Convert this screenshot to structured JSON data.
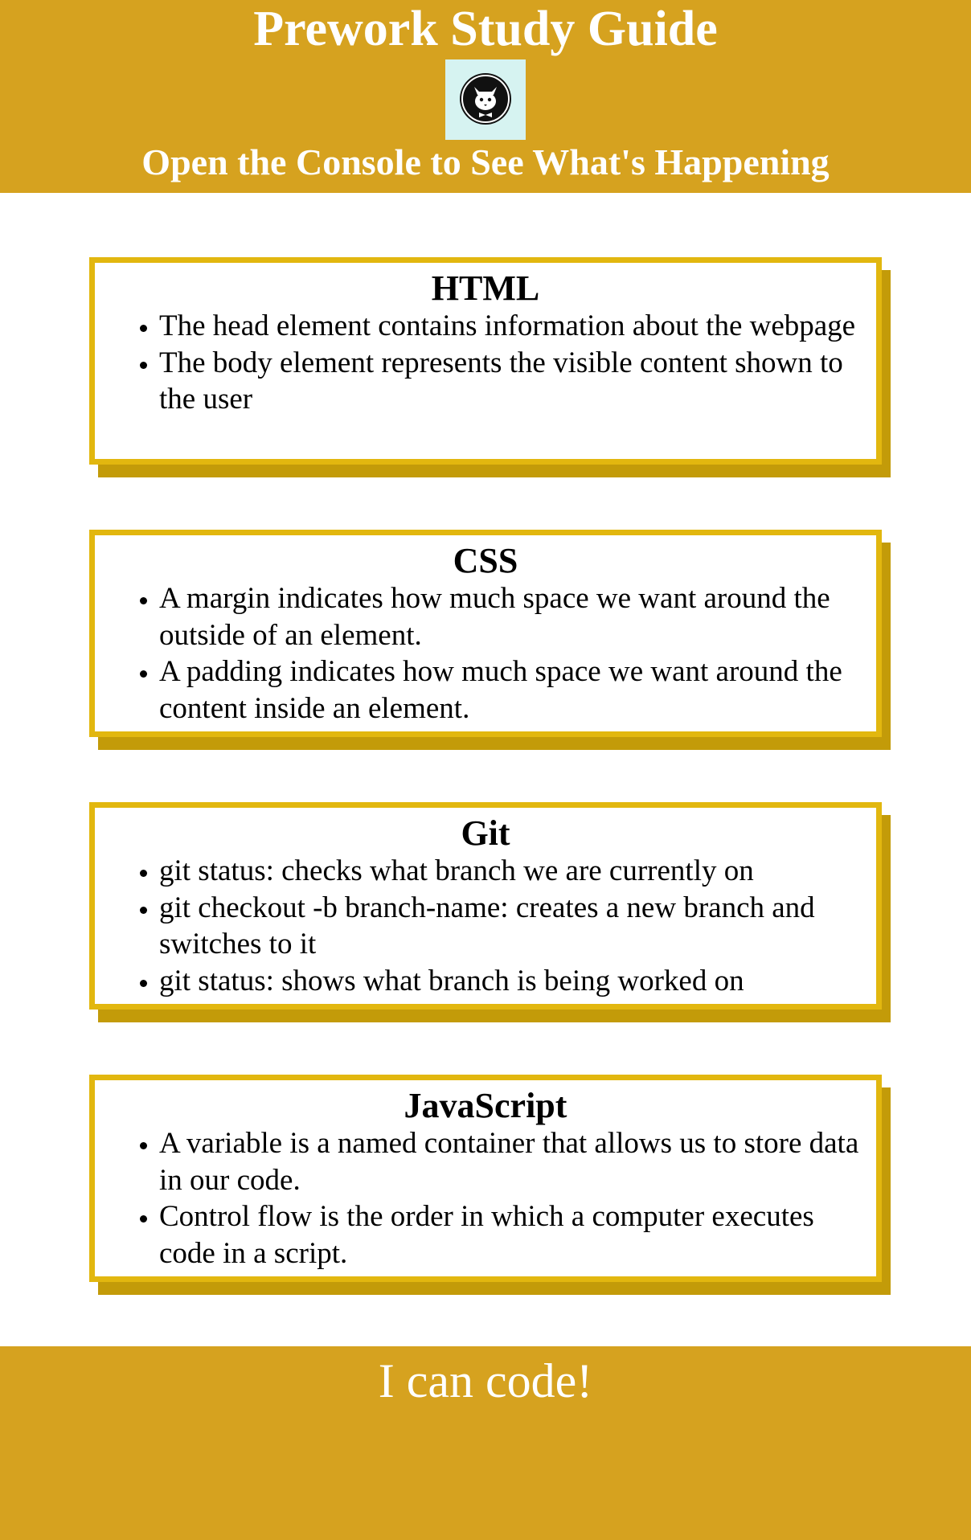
{
  "header": {
    "title": "Prework Study Guide",
    "subtitle": "Open the Console to See What's Happening",
    "logo_icon": "cat-icon"
  },
  "colors": {
    "header_bg": "#d6a21f",
    "card_border": "#e2b70f",
    "card_shadow": "#c39b09",
    "logo_bg": "#d6f3f1"
  },
  "cards": [
    {
      "title": "HTML",
      "items": [
        "The head element contains information about the webpage",
        "The body element represents the visible content shown to the user"
      ]
    },
    {
      "title": "CSS",
      "items": [
        "A margin indicates how much space we want around the outside of an element.",
        "A padding indicates how much space we want around the content inside an element."
      ]
    },
    {
      "title": "Git",
      "items": [
        "git status: checks what branch we are currently on",
        "git checkout -b branch-name: creates a new branch and switches to it",
        "git status: shows what branch is being worked on"
      ]
    },
    {
      "title": "JavaScript",
      "items": [
        "A variable is a named container that allows us to store data in our code.",
        "Control flow is the order in which a computer executes code in a script."
      ]
    }
  ],
  "footer": {
    "text": "I can code!"
  }
}
